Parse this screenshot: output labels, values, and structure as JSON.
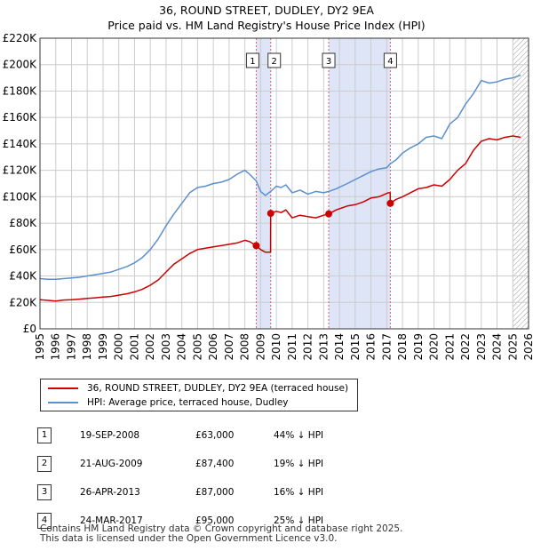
{
  "title": "36, ROUND STREET, DUDLEY, DY2 9EA",
  "subtitle": "Price paid vs. HM Land Registry's House Price Index (HPI)",
  "legend": {
    "red_label": "36, ROUND STREET, DUDLEY, DY2 9EA (terraced house)",
    "blue_label": "HPI: Average price, terraced house, Dudley"
  },
  "colors": {
    "red": "#cc0000",
    "blue": "#5b8fcf",
    "band": "#dde5f7",
    "grid": "#cccccc",
    "vline": "#e06070"
  },
  "sales": [
    {
      "num": "1",
      "date": "19-SEP-2008",
      "price": "£63,000",
      "hpi": "44% ↓ HPI"
    },
    {
      "num": "2",
      "date": "21-AUG-2009",
      "price": "£87,400",
      "hpi": "19% ↓ HPI"
    },
    {
      "num": "3",
      "date": "26-APR-2013",
      "price": "£87,000",
      "hpi": "16% ↓ HPI"
    },
    {
      "num": "4",
      "date": "24-MAR-2017",
      "price": "£95,000",
      "hpi": "25% ↓ HPI"
    }
  ],
  "footer": [
    "Contains HM Land Registry data © Crown copyright and database right 2025.",
    "This data is licensed under the Open Government Licence v3.0."
  ],
  "chart_data": {
    "type": "line",
    "title": "36, ROUND STREET, DUDLEY, DY2 9EA",
    "subtitle": "Price paid vs. HM Land Registry's House Price Index (HPI)",
    "xlabel": "",
    "ylabel": "",
    "xlim": [
      1995,
      2026
    ],
    "ylim": [
      0,
      220000
    ],
    "x_ticks": [
      1995,
      1996,
      1997,
      1998,
      1999,
      2000,
      2001,
      2002,
      2003,
      2004,
      2005,
      2006,
      2007,
      2008,
      2009,
      2010,
      2011,
      2012,
      2013,
      2014,
      2015,
      2016,
      2017,
      2018,
      2019,
      2020,
      2021,
      2022,
      2023,
      2024,
      2025,
      2026
    ],
    "x_tick_labels": [
      "1995",
      "1996",
      "1997",
      "1998",
      "1999",
      "2000",
      "2001",
      "2002",
      "2003",
      "2004",
      "2005",
      "2006",
      "2007",
      "2008",
      "2009",
      "2010",
      "2011",
      "2012",
      "2013",
      "2014",
      "2015",
      "2016",
      "2017",
      "2018",
      "2019",
      "2020",
      "2021",
      "2022",
      "2023",
      "2024",
      "2025",
      "2026"
    ],
    "y_ticks": [
      0,
      20000,
      40000,
      60000,
      80000,
      100000,
      120000,
      140000,
      160000,
      180000,
      200000,
      220000
    ],
    "y_tick_labels": [
      "£0",
      "£20K",
      "£40K",
      "£60K",
      "£80K",
      "£100K",
      "£120K",
      "£140K",
      "£160K",
      "£180K",
      "£200K",
      "£220K"
    ],
    "grid": true,
    "legend_position": "bottom",
    "shaded_ranges": [
      [
        2008.72,
        2009.64
      ],
      [
        2013.32,
        2017.23
      ]
    ],
    "hatch_from": 2025.0,
    "markers": [
      {
        "label": "1",
        "x": 2008.72,
        "y": 63000
      },
      {
        "label": "2",
        "x": 2009.64,
        "y": 87400
      },
      {
        "label": "3",
        "x": 2013.32,
        "y": 87000
      },
      {
        "label": "4",
        "x": 2017.23,
        "y": 95000
      }
    ],
    "series": [
      {
        "name": "36, ROUND STREET, DUDLEY, DY2 9EA (terraced house)",
        "color": "#cc0000",
        "x": [
          1995.0,
          1995.5,
          1996.0,
          1996.5,
          1997.0,
          1997.5,
          1998.0,
          1998.5,
          1999.0,
          1999.5,
          2000.0,
          2000.5,
          2001.0,
          2001.5,
          2002.0,
          2002.5,
          2003.0,
          2003.5,
          2004.0,
          2004.5,
          2005.0,
          2005.5,
          2006.0,
          2006.5,
          2007.0,
          2007.5,
          2008.0,
          2008.3,
          2008.72,
          2009.0,
          2009.3,
          2009.63,
          2009.64,
          2010.0,
          2010.3,
          2010.6,
          2011.0,
          2011.5,
          2012.0,
          2012.5,
          2013.0,
          2013.32,
          2013.8,
          2014.5,
          2015.0,
          2015.5,
          2016.0,
          2016.5,
          2016.9,
          2017.1,
          2017.22,
          2017.23,
          2017.6,
          2018.0,
          2018.5,
          2019.0,
          2019.5,
          2020.0,
          2020.5,
          2021.0,
          2021.5,
          2022.0,
          2022.5,
          2023.0,
          2023.5,
          2024.0,
          2024.5,
          2025.0,
          2025.5
        ],
        "y": [
          22000,
          21500,
          21000,
          21800,
          22000,
          22500,
          23000,
          23500,
          24000,
          24500,
          25500,
          26500,
          28000,
          30000,
          33000,
          37000,
          43000,
          49000,
          53000,
          57000,
          60000,
          61000,
          62000,
          63000,
          64000,
          65000,
          67000,
          66000,
          63000,
          60000,
          58000,
          58000,
          87400,
          89000,
          88000,
          90000,
          84000,
          86000,
          85000,
          84000,
          86000,
          87000,
          90000,
          93000,
          94000,
          96000,
          99000,
          100000,
          102000,
          103000,
          103000,
          95000,
          98000,
          100000,
          103000,
          106000,
          107000,
          109000,
          108000,
          113000,
          120000,
          125000,
          135000,
          142000,
          144000,
          143000,
          145000,
          146000,
          145000
        ]
      },
      {
        "name": "HPI: Average price, terraced house, Dudley",
        "color": "#5b8fcf",
        "x": [
          1995.0,
          1995.5,
          1996.0,
          1996.5,
          1997.0,
          1997.5,
          1998.0,
          1998.5,
          1999.0,
          1999.5,
          2000.0,
          2000.5,
          2001.0,
          2001.5,
          2002.0,
          2002.5,
          2003.0,
          2003.5,
          2004.0,
          2004.5,
          2005.0,
          2005.5,
          2006.0,
          2006.5,
          2007.0,
          2007.5,
          2008.0,
          2008.3,
          2008.72,
          2009.0,
          2009.3,
          2009.64,
          2010.0,
          2010.3,
          2010.6,
          2011.0,
          2011.5,
          2012.0,
          2012.5,
          2013.0,
          2013.32,
          2013.8,
          2014.5,
          2015.0,
          2015.5,
          2016.0,
          2016.5,
          2017.0,
          2017.23,
          2017.6,
          2018.0,
          2018.5,
          2019.0,
          2019.5,
          2020.0,
          2020.5,
          2021.0,
          2021.5,
          2022.0,
          2022.5,
          2023.0,
          2023.5,
          2024.0,
          2024.5,
          2025.0,
          2025.5
        ],
        "y": [
          38000,
          37500,
          37500,
          38000,
          38500,
          39000,
          40000,
          41000,
          42000,
          43000,
          45000,
          47000,
          50000,
          54000,
          60000,
          68000,
          78000,
          87000,
          95000,
          103000,
          107000,
          108000,
          110000,
          111000,
          113000,
          117000,
          120000,
          117000,
          112000,
          104000,
          101000,
          104000,
          108000,
          107000,
          109000,
          103000,
          105000,
          102000,
          104000,
          103000,
          104000,
          106000,
          110000,
          113000,
          116000,
          119000,
          121000,
          122000,
          125000,
          128000,
          133000,
          137000,
          140000,
          145000,
          146000,
          144000,
          155000,
          160000,
          170000,
          178000,
          188000,
          186000,
          187000,
          189000,
          190000,
          192000
        ]
      }
    ]
  }
}
